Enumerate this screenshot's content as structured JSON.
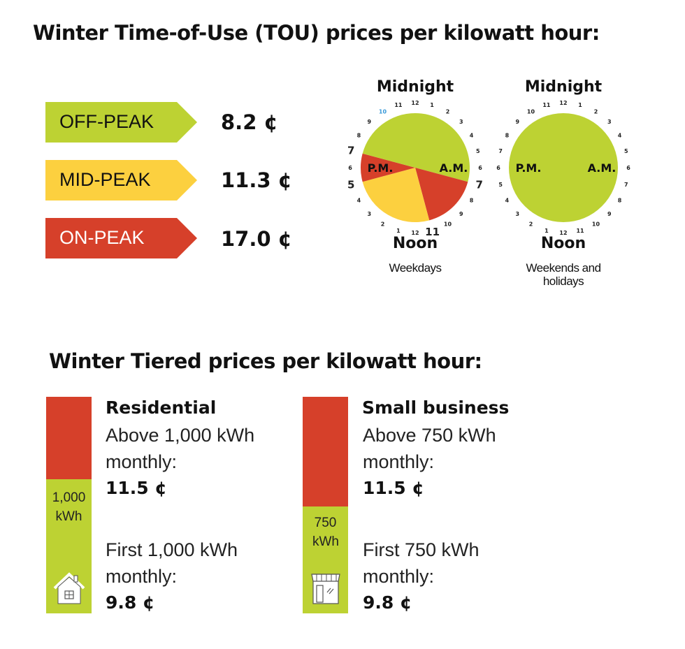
{
  "colors": {
    "off_peak": "#bdd233",
    "mid_peak": "#fcd03f",
    "on_peak": "#d6402a"
  },
  "tou": {
    "title": "Winter Time-of-Use (TOU) prices per kilowatt hour:",
    "rates": [
      {
        "label": "OFF-PEAK",
        "price": "8.2 ¢"
      },
      {
        "label": "MID-PEAK",
        "price": "11.3 ¢"
      },
      {
        "label": "ON-PEAK",
        "price": "17.0 ¢"
      }
    ],
    "clock_hours": [
      "12",
      "1",
      "2",
      "3",
      "4",
      "5",
      "6",
      "7",
      "8",
      "9",
      "10",
      "11",
      "12",
      "1",
      "2",
      "3",
      "4",
      "5",
      "6",
      "7",
      "8",
      "9",
      "10",
      "11"
    ],
    "clocks": [
      {
        "top": "Midnight",
        "bottom": "Noon",
        "caption": "Weekdays",
        "am": "A.M.",
        "pm": "P.M.",
        "segments": [
          {
            "from": 0,
            "to": 7,
            "rate": "off_peak"
          },
          {
            "from": 7,
            "to": 11,
            "rate": "on_peak"
          },
          {
            "from": 11,
            "to": 17,
            "rate": "mid_peak"
          },
          {
            "from": 17,
            "to": 19,
            "rate": "on_peak"
          },
          {
            "from": 19,
            "to": 24,
            "rate": "off_peak"
          }
        ]
      },
      {
        "top": "Midnight",
        "bottom": "Noon",
        "caption": "Weekends and holidays",
        "am": "A.M.",
        "pm": "P.M.",
        "segments": [
          {
            "from": 0,
            "to": 24,
            "rate": "off_peak"
          }
        ]
      }
    ]
  },
  "tiered": {
    "title": "Winter Tiered prices per kilowatt hour:",
    "residential": {
      "heading": "Residential",
      "upper_text": "Above 1,000 kWh monthly:",
      "upper_price": "11.5 ¢",
      "threshold": "1,000 kWh",
      "lower_text": "First 1,000 kWh monthly:",
      "lower_price": "9.8 ¢",
      "icon": "house-icon"
    },
    "business": {
      "heading": "Small business",
      "upper_text": "Above 750 kWh monthly:",
      "upper_price": "11.5 ¢",
      "threshold": "750 kWh",
      "lower_text": "First 750 kWh monthly:",
      "lower_price": "9.8 ¢",
      "icon": "storefront-icon"
    }
  }
}
